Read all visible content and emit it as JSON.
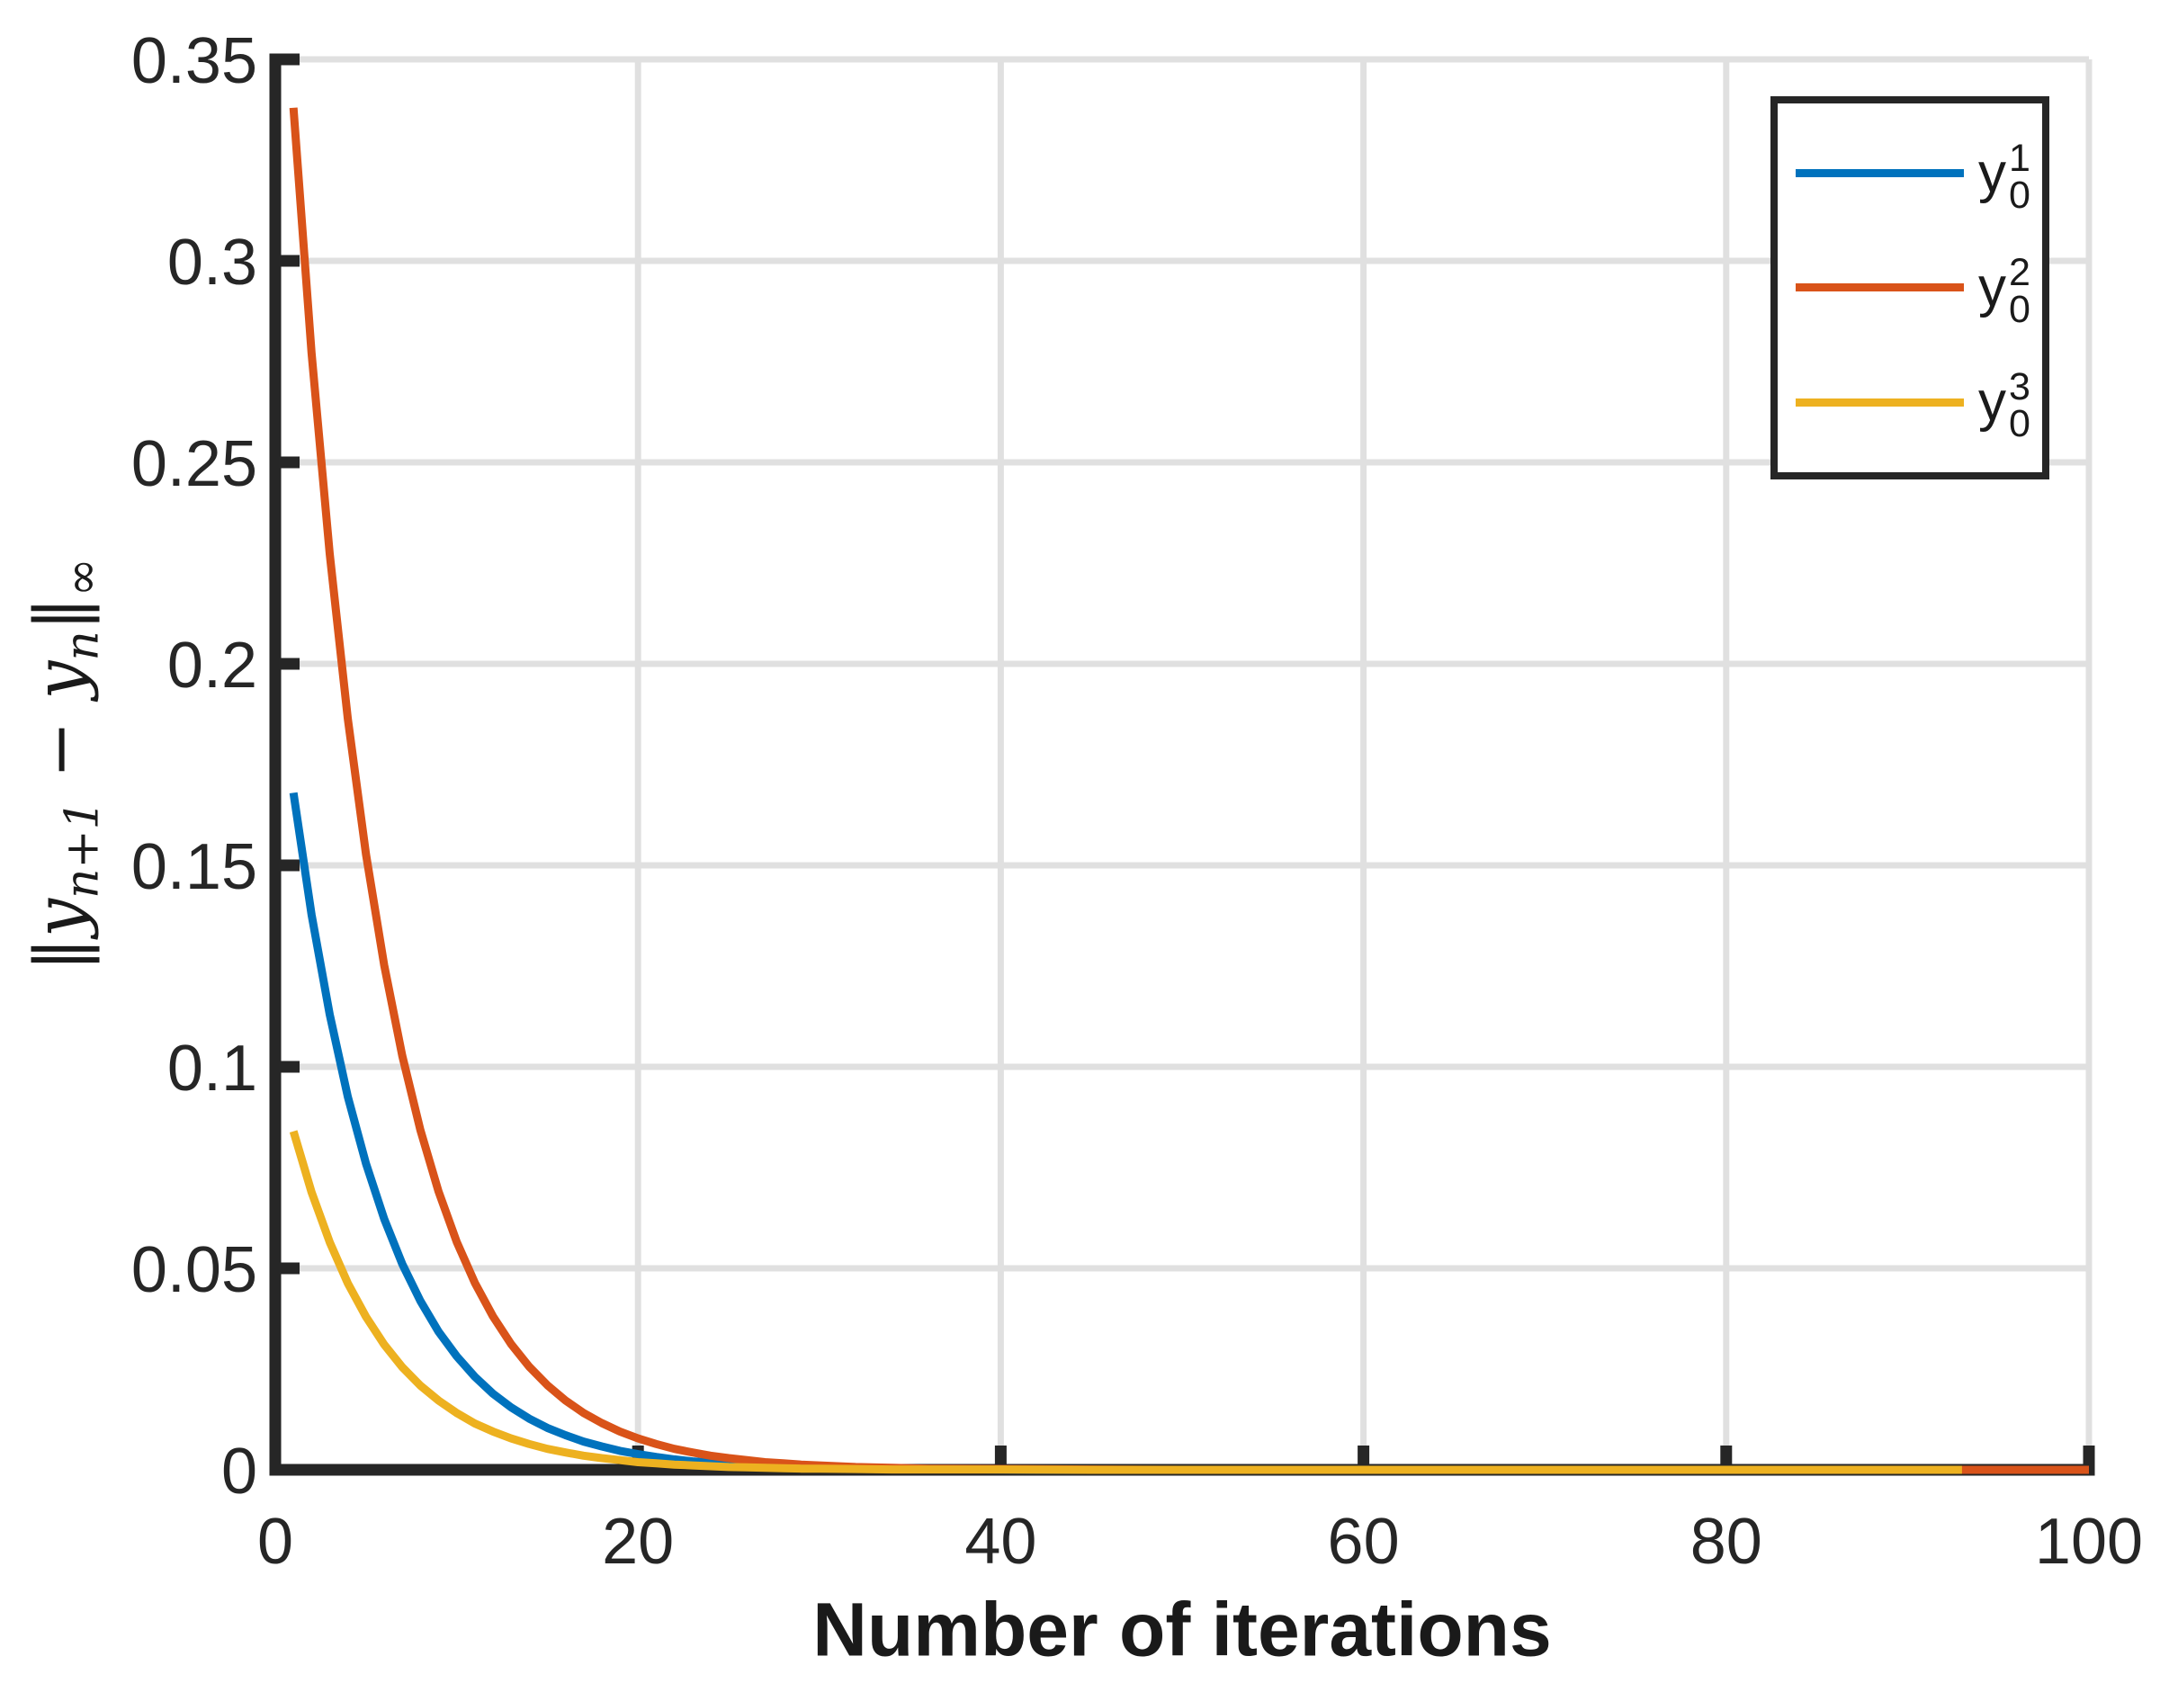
{
  "chart_data": {
    "type": "line",
    "title": "",
    "xlabel": "Number of iterations",
    "ylabel": "‖y_{n+1} − y_n‖_∞",
    "ylabel_parts": {
      "norm_open": "‖",
      "base1": "y",
      "sub1": "n+1",
      "minus": " − ",
      "base2": "y",
      "sub2": "n",
      "norm_close": "‖",
      "sub_inf": "∞"
    },
    "xlim": [
      0,
      100
    ],
    "ylim": [
      0,
      0.35
    ],
    "x_ticks": [
      0,
      20,
      40,
      60,
      80,
      100
    ],
    "x_tick_labels": [
      "0",
      "20",
      "40",
      "60",
      "80",
      "100"
    ],
    "y_ticks": [
      0,
      0.05,
      0.1,
      0.15,
      0.2,
      0.25,
      0.3,
      0.35
    ],
    "y_tick_labels": [
      "0",
      "0.05",
      "0.1",
      "0.15",
      "0.2",
      "0.25",
      "0.3",
      "0.35"
    ],
    "grid": true,
    "legend_position": "top-right",
    "series": [
      {
        "name": "y_0^1",
        "color": "#0072BD",
        "x": [
          1,
          2,
          3,
          4,
          5,
          6,
          7,
          8,
          9,
          10,
          11,
          12,
          13,
          14,
          15,
          16,
          17,
          18,
          19,
          20,
          21,
          22,
          23,
          24,
          25,
          26,
          27,
          28,
          29,
          30,
          32,
          34,
          36,
          40,
          45,
          50,
          60,
          70,
          80,
          90,
          95,
          100
        ],
        "y": [
          0.168,
          0.1378,
          0.113,
          0.0926,
          0.076,
          0.0623,
          0.0511,
          0.0419,
          0.0343,
          0.0282,
          0.0231,
          0.0189,
          0.0155,
          0.0127,
          0.0104,
          0.0086,
          0.007,
          0.0058,
          0.0047,
          0.0039,
          0.0032,
          0.0026,
          0.0021,
          0.0018,
          0.0014,
          0.0012,
          0.001,
          0.0008,
          0.0007,
          0.0005,
          0.0004,
          0.0002,
          0.0002,
          0.0001,
          0,
          0,
          0,
          0,
          0,
          0,
          0,
          0
        ]
      },
      {
        "name": "y_0^2",
        "color": "#D95319",
        "x": [
          1,
          2,
          3,
          4,
          5,
          6,
          7,
          8,
          9,
          10,
          11,
          12,
          13,
          14,
          15,
          16,
          17,
          18,
          19,
          20,
          21,
          22,
          23,
          24,
          25,
          26,
          27,
          28,
          29,
          30,
          32,
          34,
          36,
          40,
          45,
          50,
          60,
          70,
          80,
          90,
          95,
          100
        ],
        "y": [
          0.338,
          0.2772,
          0.2273,
          0.1864,
          0.1528,
          0.1253,
          0.1028,
          0.0843,
          0.0691,
          0.0566,
          0.0464,
          0.0381,
          0.0312,
          0.0256,
          0.021,
          0.0172,
          0.0141,
          0.0116,
          0.0095,
          0.0078,
          0.0064,
          0.0052,
          0.0043,
          0.0035,
          0.0029,
          0.0024,
          0.0019,
          0.0016,
          0.0013,
          0.0011,
          0.0007,
          0.0005,
          0.0003,
          0.0002,
          0.0001,
          0,
          0,
          0,
          0,
          0,
          0,
          0
        ]
      },
      {
        "name": "y_0^3",
        "color": "#EDB120",
        "x": [
          1,
          2,
          3,
          4,
          5,
          6,
          7,
          8,
          9,
          10,
          11,
          12,
          13,
          14,
          15,
          16,
          17,
          18,
          19,
          20,
          21,
          22,
          23,
          24,
          25,
          26,
          27,
          28,
          29,
          30,
          32,
          34,
          36,
          40,
          45,
          50,
          60,
          70,
          80,
          90,
          93
        ],
        "y": [
          0.084,
          0.0689,
          0.0565,
          0.0463,
          0.038,
          0.0311,
          0.0255,
          0.0209,
          0.0172,
          0.0141,
          0.0115,
          0.0095,
          0.0078,
          0.0064,
          0.0052,
          0.0043,
          0.0035,
          0.0029,
          0.0024,
          0.0019,
          0.0016,
          0.0013,
          0.0011,
          0.0009,
          0.0007,
          0.0006,
          0.0005,
          0.0004,
          0.0003,
          0.0003,
          0.0002,
          0.0001,
          0.0001,
          0.0001,
          0,
          0,
          0,
          0,
          0,
          0,
          0
        ]
      }
    ]
  },
  "legend": {
    "items": [
      {
        "base": "y",
        "sup": "1",
        "sub": "0"
      },
      {
        "base": "y",
        "sup": "2",
        "sub": "0"
      },
      {
        "base": "y",
        "sup": "3",
        "sub": "0"
      }
    ]
  },
  "style_colors": {
    "axis": "#262626",
    "grid": "#E0E0E0",
    "background": "#FFFFFF"
  }
}
